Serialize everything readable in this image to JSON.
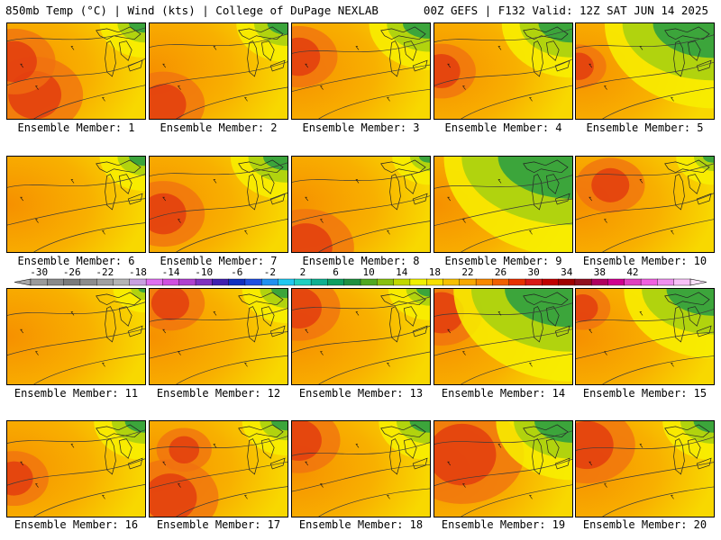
{
  "header": {
    "left": "850mb Temp (°C) | Wind (kts) | College of DuPage NEXLAB",
    "right": "00Z GEFS | F132 Valid: 12Z SAT JUN 14 2025"
  },
  "caption_prefix": "Ensemble Member:",
  "members": [
    {
      "label": "Ensemble Member: 1",
      "hot": [
        [
          0.2,
          0.75,
          0.35
        ],
        [
          0.05,
          0.4,
          0.3
        ]
      ],
      "cool": 0.12
    },
    {
      "label": "Ensemble Member: 2",
      "hot": [
        [
          0.1,
          0.85,
          0.3
        ]
      ],
      "cool": 0.15
    },
    {
      "label": "Ensemble Member: 3",
      "hot": [
        [
          0.05,
          0.35,
          0.28
        ]
      ],
      "cool": 0.2
    },
    {
      "label": "Ensemble Member: 4",
      "hot": [
        [
          0.05,
          0.5,
          0.25
        ]
      ],
      "cool": 0.25
    },
    {
      "label": "Ensemble Member: 5",
      "hot": [
        [
          0.02,
          0.45,
          0.2
        ]
      ],
      "cool": 0.45
    },
    {
      "label": "Ensemble Member: 6",
      "hot": [],
      "cool": 0.12
    },
    {
      "label": "Ensemble Member: 7",
      "hot": [
        [
          0.1,
          0.6,
          0.3
        ]
      ],
      "cool": 0.18
    },
    {
      "label": "Ensemble Member: 8",
      "hot": [
        [
          0.1,
          0.95,
          0.35
        ]
      ],
      "cool": 0.08
    },
    {
      "label": "Ensemble Member: 9",
      "hot": [],
      "cool": 0.55
    },
    {
      "label": "Ensemble Member: 10",
      "hot": [
        [
          0.25,
          0.3,
          0.25
        ]
      ],
      "cool": 0.08
    },
    {
      "label": "Ensemble Member: 11",
      "hot": [],
      "cool": 0.05
    },
    {
      "label": "Ensemble Member: 12",
      "hot": [
        [
          0.15,
          0.15,
          0.25
        ]
      ],
      "cool": 0.12
    },
    {
      "label": "Ensemble Member: 13",
      "hot": [
        [
          0.05,
          0.2,
          0.3
        ]
      ],
      "cool": 0.1
    },
    {
      "label": "Ensemble Member: 14",
      "hot": [
        [
          0.05,
          0.25,
          0.3
        ]
      ],
      "cool": 0.5
    },
    {
      "label": "Ensemble Member: 15",
      "hot": [
        [
          0.05,
          0.2,
          0.2
        ]
      ],
      "cool": 0.35
    },
    {
      "label": "Ensemble Member: 16",
      "hot": [
        [
          0.05,
          0.6,
          0.25
        ]
      ],
      "cool": 0.15
    },
    {
      "label": "Ensemble Member: 17",
      "hot": [
        [
          0.15,
          0.8,
          0.35
        ],
        [
          0.25,
          0.3,
          0.2
        ]
      ],
      "cool": 0.12
    },
    {
      "label": "Ensemble Member: 18",
      "hot": [
        [
          0.05,
          0.2,
          0.3
        ]
      ],
      "cool": 0.15
    },
    {
      "label": "Ensemble Member: 19",
      "hot": [
        [
          0.2,
          0.35,
          0.45
        ]
      ],
      "cool": 0.28
    },
    {
      "label": "Ensemble Member: 20",
      "hot": [
        [
          0.08,
          0.25,
          0.35
        ]
      ],
      "cool": 0.15
    }
  ],
  "colorbar": {
    "ticks": [
      "-30",
      "-26",
      "-22",
      "-18",
      "-14",
      "-10",
      "-6",
      "-2",
      "2",
      "6",
      "10",
      "14",
      "18",
      "22",
      "26",
      "30",
      "34",
      "38",
      "42"
    ],
    "colors": [
      "#9a9a9a",
      "#8a8a8a",
      "#7a7a7a",
      "#8c8c8c",
      "#a0a0a0",
      "#b4b4b4",
      "#c8a0e0",
      "#e070f0",
      "#d050e0",
      "#b040d0",
      "#8030c0",
      "#4020b0",
      "#1030c0",
      "#2050e0",
      "#2090f0",
      "#20c8f0",
      "#20d0c0",
      "#10b090",
      "#10a060",
      "#209040",
      "#50a820",
      "#88c010",
      "#c0d800",
      "#f0f000",
      "#f8e000",
      "#f8c000",
      "#f8a800",
      "#f88800",
      "#f06000",
      "#e83000",
      "#d81818",
      "#c00000",
      "#a00000",
      "#901020",
      "#b00060",
      "#d00090",
      "#e040c0",
      "#f060e0",
      "#f090f0",
      "#f8c0f8"
    ]
  }
}
